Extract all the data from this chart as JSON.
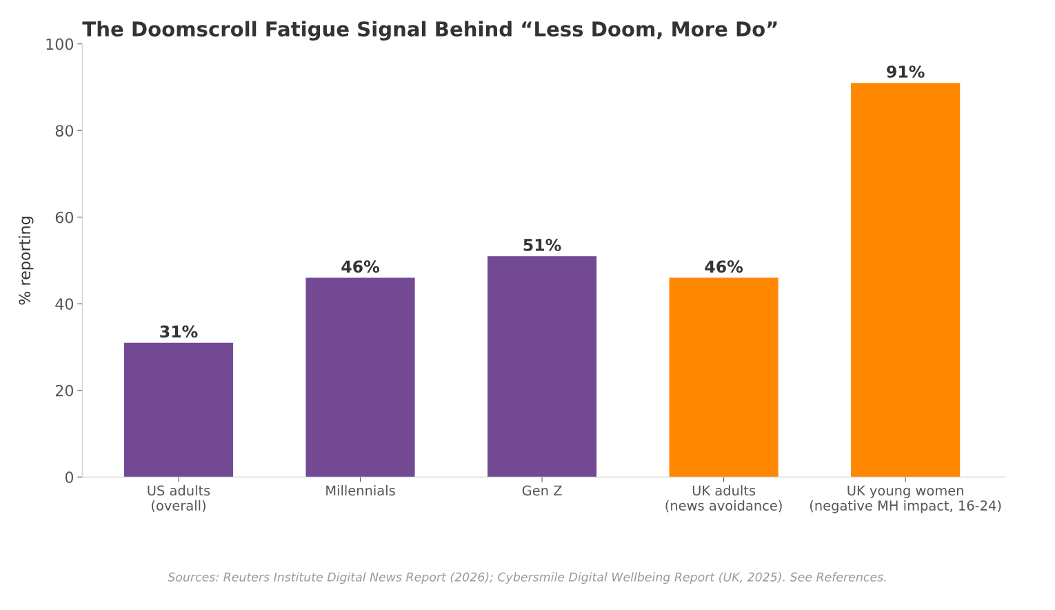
{
  "chart_data": {
    "type": "bar",
    "title": "The Doomscroll Fatigue Signal Behind “Less Doom, More Do”",
    "ylabel": "% reporting",
    "categories": [
      "US adults\n(overall)",
      "Millennials",
      "Gen Z",
      "UK adults\n(news avoidance)",
      "UK young women\n(negative MH impact, 16-24)"
    ],
    "values": [
      31,
      46,
      51,
      46,
      91
    ],
    "colors": [
      "#734994",
      "#734994",
      "#734994",
      "#ff8800",
      "#ff8800"
    ],
    "value_labels": [
      "31%",
      "46%",
      "51%",
      "46%",
      "91%"
    ],
    "ylim": [
      0,
      100
    ],
    "yticks": [
      0,
      20,
      40,
      60,
      80,
      100
    ],
    "grid": false,
    "legend": false,
    "annotations": [
      "Sources: Reuters Institute Digital News Report (2026); Cybersmile Digital Wellbeing Report (UK, 2025). See References."
    ]
  }
}
